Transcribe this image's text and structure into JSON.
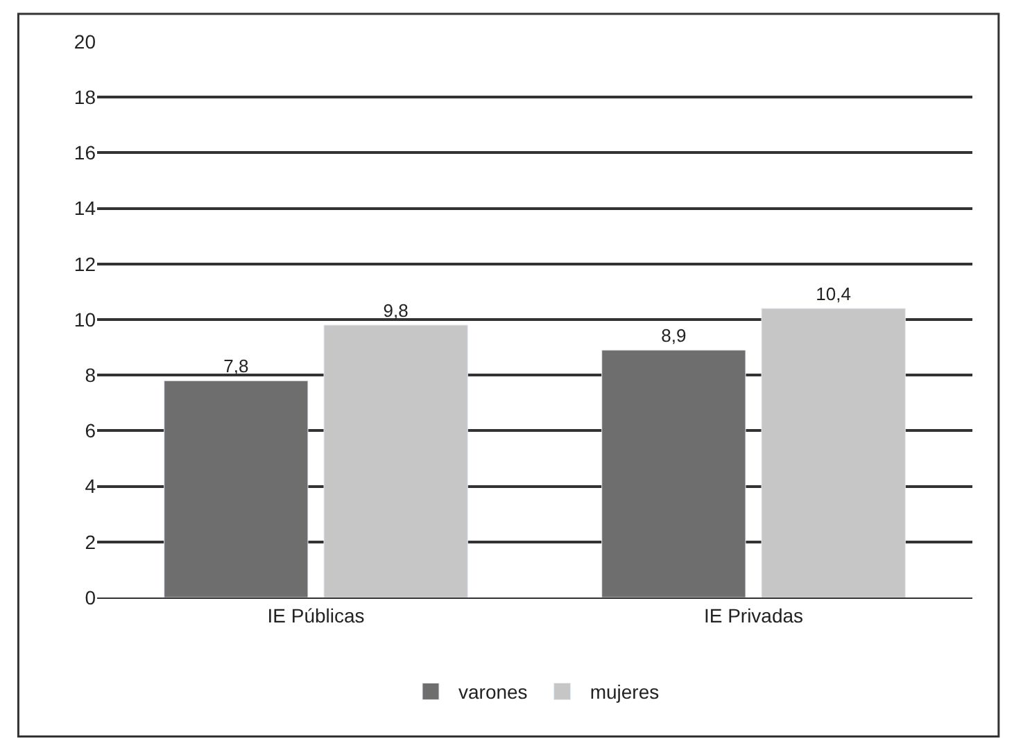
{
  "chart_data": {
    "type": "bar",
    "categories": [
      "IE Públicas",
      "IE Privadas"
    ],
    "series": [
      {
        "name": "varones",
        "color": "#6e6e6e",
        "values": [
          7.8,
          8.9
        ],
        "value_labels": [
          "7,8",
          "8,9"
        ]
      },
      {
        "name": "mujeres",
        "color": "#c6c6c6",
        "values": [
          9.8,
          10.4
        ],
        "value_labels": [
          "9,8",
          "10,4"
        ]
      }
    ],
    "ylim": [
      0,
      20
    ],
    "yticks": [
      0,
      2,
      4,
      6,
      8,
      10,
      12,
      14,
      16,
      18,
      20
    ],
    "grid": "y",
    "legend": "bottom"
  }
}
